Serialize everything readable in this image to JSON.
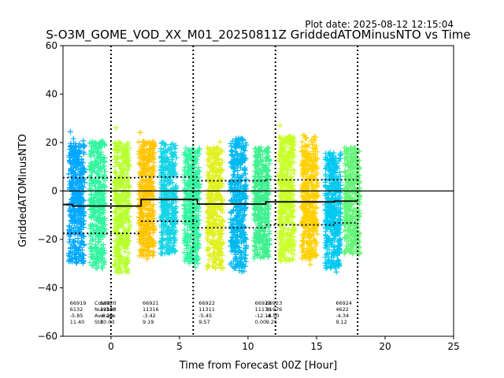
{
  "plot_date": "Plot date: 2025-08-12 12:15:04",
  "chart_data": {
    "type": "scatter",
    "title": "S-O3M_GOME_VOD_XX_M01_20250811Z GriddedATOMinusNTO vs Time",
    "xlabel": "Time from Forecast 00Z [Hour]",
    "ylabel": "GriddedATOMinusNTO",
    "xlim": [
      -3.5,
      25
    ],
    "ylim": [
      -60,
      60
    ],
    "xticks": [
      0,
      5,
      10,
      15,
      20,
      25
    ],
    "yticks": [
      -60,
      -40,
      -20,
      0,
      20,
      40,
      60
    ],
    "zero_line": 0,
    "vlines": [
      0,
      6,
      12,
      18
    ],
    "series": [
      {
        "x": -2.5,
        "center": -2,
        "low": -34,
        "high": 24,
        "color": "#00a8ff"
      },
      {
        "x": -1.0,
        "center": -4,
        "low": -36,
        "high": 25,
        "color": "#33f5a0"
      },
      {
        "x": 0.8,
        "center": -5,
        "low": -38,
        "high": 24,
        "color": "#b8ff2e"
      },
      {
        "x": 2.6,
        "center": -3,
        "low": -31,
        "high": 25,
        "color": "#ffc400"
      },
      {
        "x": 4.2,
        "center": -2,
        "low": -30,
        "high": 24,
        "color": "#16d4e6"
      },
      {
        "x": 5.9,
        "center": -4,
        "low": -34,
        "high": 22,
        "color": "#33f5a0"
      },
      {
        "x": 7.6,
        "center": -6,
        "low": -36,
        "high": 22,
        "color": "#e0f020"
      },
      {
        "x": 9.3,
        "center": -8,
        "low": -36,
        "high": 26,
        "color": "#00b8f0"
      },
      {
        "x": 11.0,
        "center": -4,
        "low": -32,
        "high": 22,
        "color": "#40f090"
      },
      {
        "x": 12.8,
        "center": -2,
        "low": -33,
        "high": 27,
        "color": "#c8ff28"
      },
      {
        "x": 14.5,
        "center": -4,
        "low": -32,
        "high": 27,
        "color": "#ffd000"
      },
      {
        "x": 16.2,
        "center": -6,
        "low": -36,
        "high": 20,
        "color": "#00c8f0"
      },
      {
        "x": 17.6,
        "center": -4,
        "low": -30,
        "high": 22,
        "color": "#66f57a"
      }
    ],
    "mean_steps": [
      {
        "x0": -3.5,
        "x1": -2.8,
        "y": -5.6
      },
      {
        "x0": -2.8,
        "x1": 2.2,
        "y": -6.2
      },
      {
        "x0": 2.2,
        "x1": 6.3,
        "y": -3.5
      },
      {
        "x0": 6.3,
        "x1": 11.3,
        "y": -5.4
      },
      {
        "x0": 11.3,
        "x1": 16.3,
        "y": -4.5
      },
      {
        "x0": 16.3,
        "x1": 18.0,
        "y": -4.2
      }
    ],
    "std_lines": [
      {
        "x0": -3.5,
        "x1": 2.2,
        "y": 5.5
      },
      {
        "x0": 2.2,
        "x1": 6.3,
        "y": 5.8
      },
      {
        "x0": 6.3,
        "x1": 11.3,
        "y": 4.2
      },
      {
        "x0": 11.3,
        "x1": 18.0,
        "y": 4.6
      },
      {
        "x0": -3.5,
        "x1": 2.2,
        "y": -17.5
      },
      {
        "x0": 2.2,
        "x1": 6.3,
        "y": -12.5
      },
      {
        "x0": 6.3,
        "x1": 11.3,
        "y": -15.2
      },
      {
        "x0": 11.3,
        "x1": 16.3,
        "y": -14.0
      },
      {
        "x0": 16.3,
        "x1": 18.0,
        "y": -13.2
      }
    ],
    "stat_blocks": [
      {
        "x": -3.0,
        "lines": [
          "66919",
          "6132",
          "-5.85",
          "11.40"
        ]
      },
      {
        "x": -1.2,
        "lines": [
          "Count",
          "Number",
          "Average",
          "Std"
        ]
      },
      {
        "x": -0.8,
        "lines": [
          "66920",
          "12188",
          "-6.20",
          "10.03"
        ]
      },
      {
        "x": 2.3,
        "lines": [
          "66921",
          "11316",
          "-3.42",
          "9.19"
        ]
      },
      {
        "x": 6.4,
        "lines": [
          "66922",
          "11311",
          "-5.45",
          "9.57"
        ]
      },
      {
        "x": 10.5,
        "lines": [
          "66923",
          "11176",
          "-12.18",
          "0.00"
        ]
      },
      {
        "x": 11.3,
        "lines": [
          "66923",
          "11976",
          "-4.50",
          "9.25"
        ]
      },
      {
        "x": 16.4,
        "lines": [
          "66924",
          "4622",
          "-4.34",
          "9.12"
        ]
      }
    ]
  }
}
